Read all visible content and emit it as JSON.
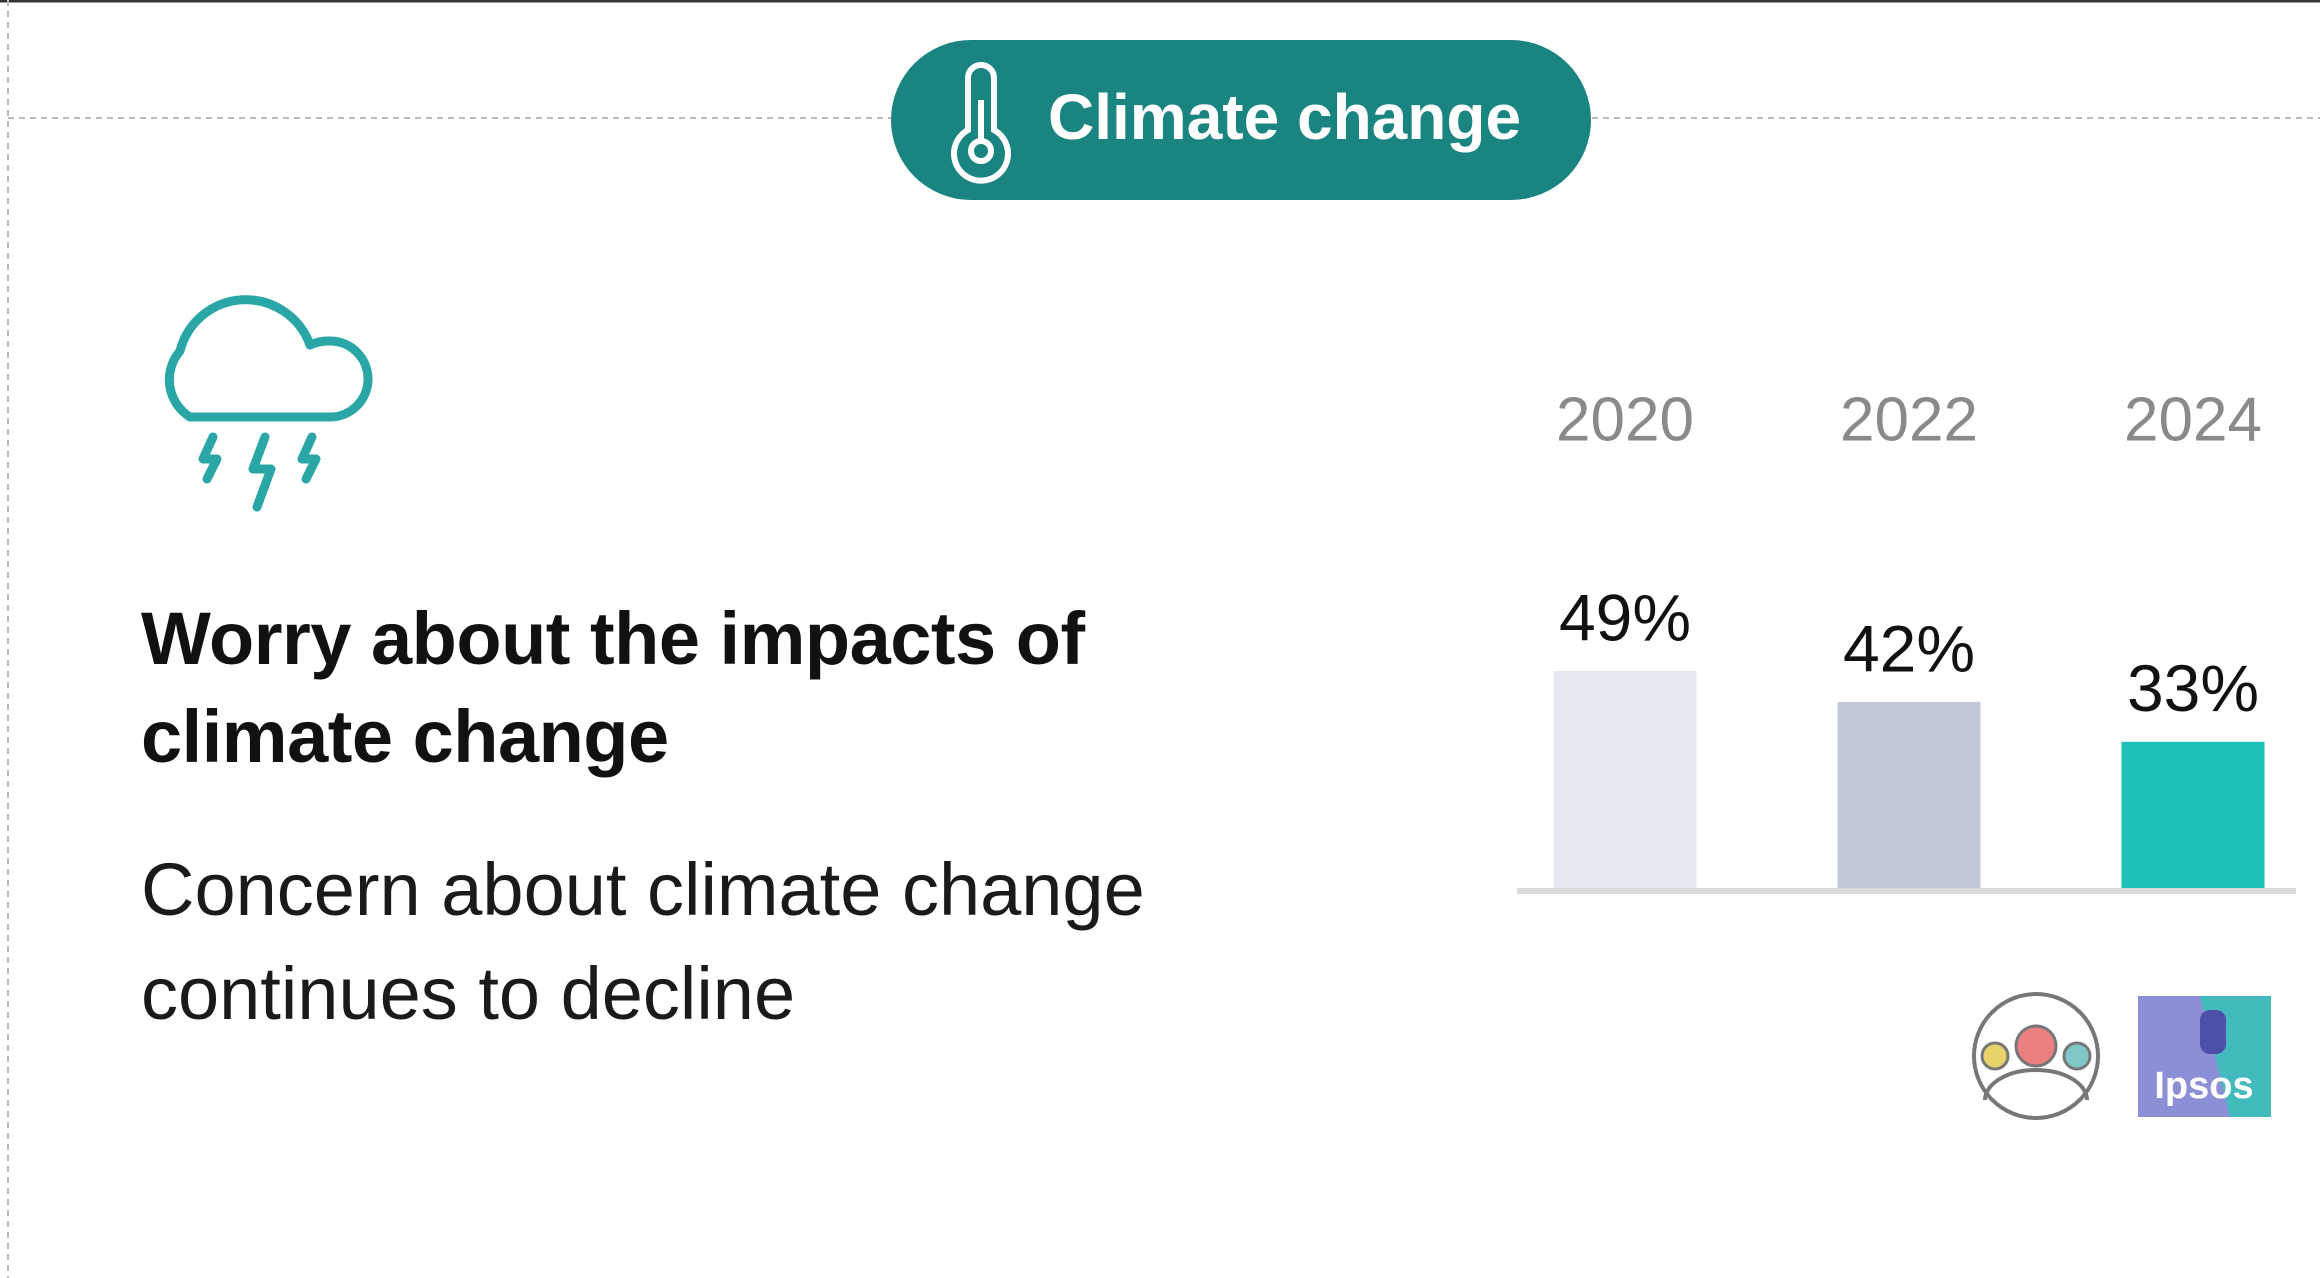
{
  "badge": "Climate change",
  "headline": "Worry about the impacts of climate change",
  "subtitle": "Concern about climate change continues to decline",
  "logo_text": "Ipsos",
  "chart_data": {
    "type": "bar",
    "categories": [
      "2020",
      "2022",
      "2024"
    ],
    "values": [
      49,
      42,
      33
    ],
    "value_labels": [
      "49%",
      "42%",
      "33%"
    ],
    "colors": [
      "#e6e8f1",
      "#c4c9d9",
      "#1ec1b5"
    ]
  }
}
